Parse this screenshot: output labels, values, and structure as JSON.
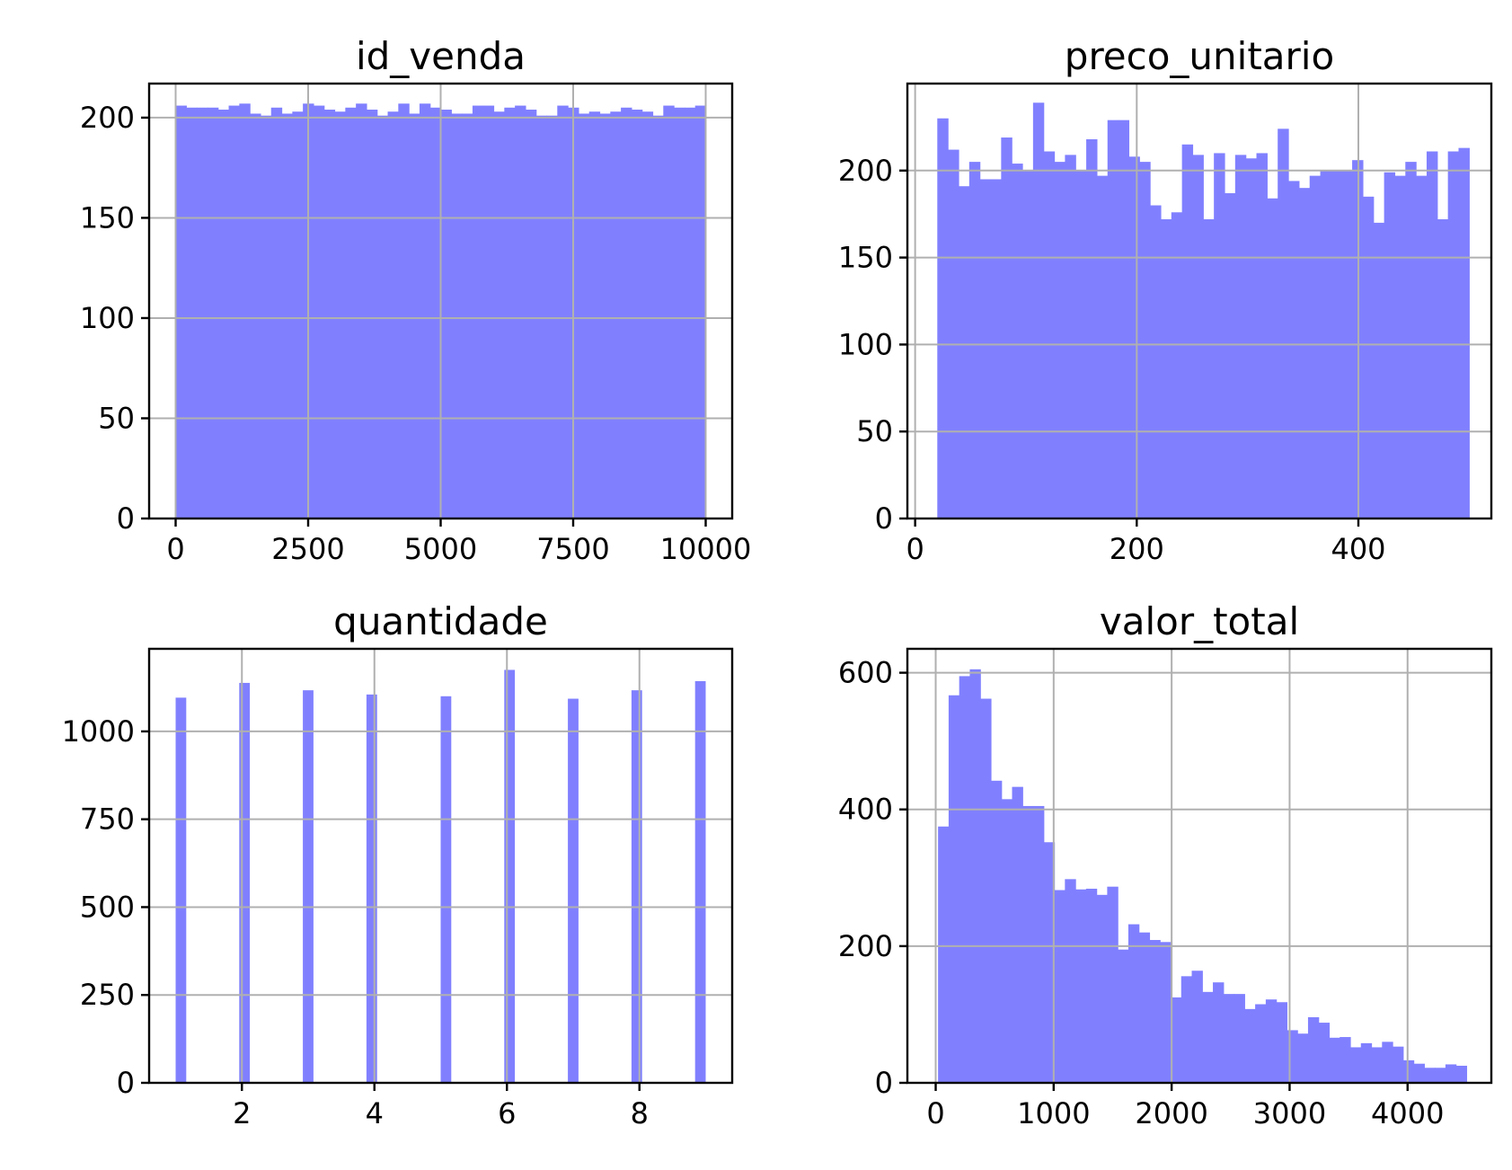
{
  "colors": {
    "bar": "#8080ff",
    "grid": "#b0b0b0",
    "axis": "#000000"
  },
  "chart_data": [
    {
      "type": "bar",
      "title": "id_venda",
      "grid": true,
      "xlim": [
        -500,
        10500
      ],
      "ylim": [
        0,
        217
      ],
      "xticks": [
        0,
        2500,
        5000,
        7500,
        10000
      ],
      "xtick_labels": [
        "0",
        "2500",
        "5000",
        "7500",
        "10000"
      ],
      "yticks": [
        0,
        50,
        100,
        150,
        200
      ],
      "ytick_labels": [
        "0",
        "50",
        "100",
        "150",
        "200"
      ],
      "bin_edges": {
        "start": 1,
        "end": 10000,
        "count": 50
      },
      "values": [
        206,
        205,
        205,
        205,
        204,
        206,
        207,
        202,
        201,
        205,
        202,
        203,
        207,
        206,
        204,
        203,
        205,
        207,
        204,
        201,
        203,
        207,
        202,
        207,
        205,
        204,
        202,
        202,
        206,
        206,
        203,
        205,
        206,
        204,
        201,
        201,
        206,
        205,
        202,
        203,
        202,
        203,
        205,
        204,
        203,
        201,
        206,
        205,
        205,
        206
      ]
    },
    {
      "type": "bar",
      "title": "preco_unitario",
      "grid": true,
      "xlim": [
        -7,
        520
      ],
      "ylim": [
        0,
        250
      ],
      "xticks": [
        0,
        200,
        400
      ],
      "xtick_labels": [
        "0",
        "200",
        "400"
      ],
      "yticks": [
        0,
        50,
        100,
        150,
        200
      ],
      "ytick_labels": [
        "0",
        "50",
        "100",
        "150",
        "200"
      ],
      "bin_edges": {
        "start": 20,
        "end": 500,
        "count": 50
      },
      "values": [
        230,
        212,
        191,
        205,
        195,
        195,
        219,
        204,
        200,
        239,
        211,
        205,
        209,
        200,
        218,
        197,
        229,
        229,
        208,
        205,
        180,
        172,
        176,
        215,
        209,
        172,
        210,
        187,
        209,
        207,
        210,
        184,
        224,
        194,
        190,
        197,
        200,
        200,
        200,
        206,
        185,
        170,
        199,
        197,
        205,
        197,
        211,
        172,
        211,
        213
      ]
    },
    {
      "type": "bar",
      "title": "quantidade",
      "grid": true,
      "xlim": [
        0.6,
        9.4
      ],
      "ylim": [
        0,
        1235
      ],
      "xticks": [
        2,
        4,
        6,
        8
      ],
      "xtick_labels": [
        "2",
        "4",
        "6",
        "8"
      ],
      "yticks": [
        0,
        250,
        500,
        750,
        1000
      ],
      "ytick_labels": [
        "0",
        "250",
        "500",
        "750",
        "1000"
      ],
      "bin_edges": {
        "start": 1,
        "end": 9,
        "count": 50
      },
      "categories": [
        "1",
        "2",
        "3",
        "4",
        "5",
        "6",
        "7",
        "8",
        "9"
      ],
      "values": [
        1096,
        1138,
        1117,
        1105,
        1100,
        1175,
        1093,
        1117,
        1143
      ]
    },
    {
      "type": "bar",
      "title": "valor_total",
      "grid": true,
      "xlim": [
        -240,
        4710
      ],
      "ylim": [
        0,
        635
      ],
      "xticks": [
        0,
        1000,
        2000,
        3000,
        4000
      ],
      "xtick_labels": [
        "0",
        "1000",
        "2000",
        "3000",
        "4000"
      ],
      "yticks": [
        0,
        200,
        400,
        600
      ],
      "ytick_labels": [
        "0",
        "200",
        "400",
        "600"
      ],
      "bin_edges": {
        "start": 20,
        "end": 4500,
        "count": 50
      },
      "values": [
        375,
        567,
        595,
        605,
        562,
        442,
        415,
        433,
        405,
        405,
        352,
        282,
        298,
        283,
        284,
        275,
        287,
        195,
        232,
        220,
        209,
        206,
        125,
        156,
        164,
        133,
        147,
        130,
        130,
        108,
        115,
        122,
        118,
        77,
        72,
        96,
        88,
        66,
        67,
        52,
        58,
        52,
        60,
        53,
        33,
        28,
        22,
        22,
        27,
        25
      ]
    }
  ]
}
